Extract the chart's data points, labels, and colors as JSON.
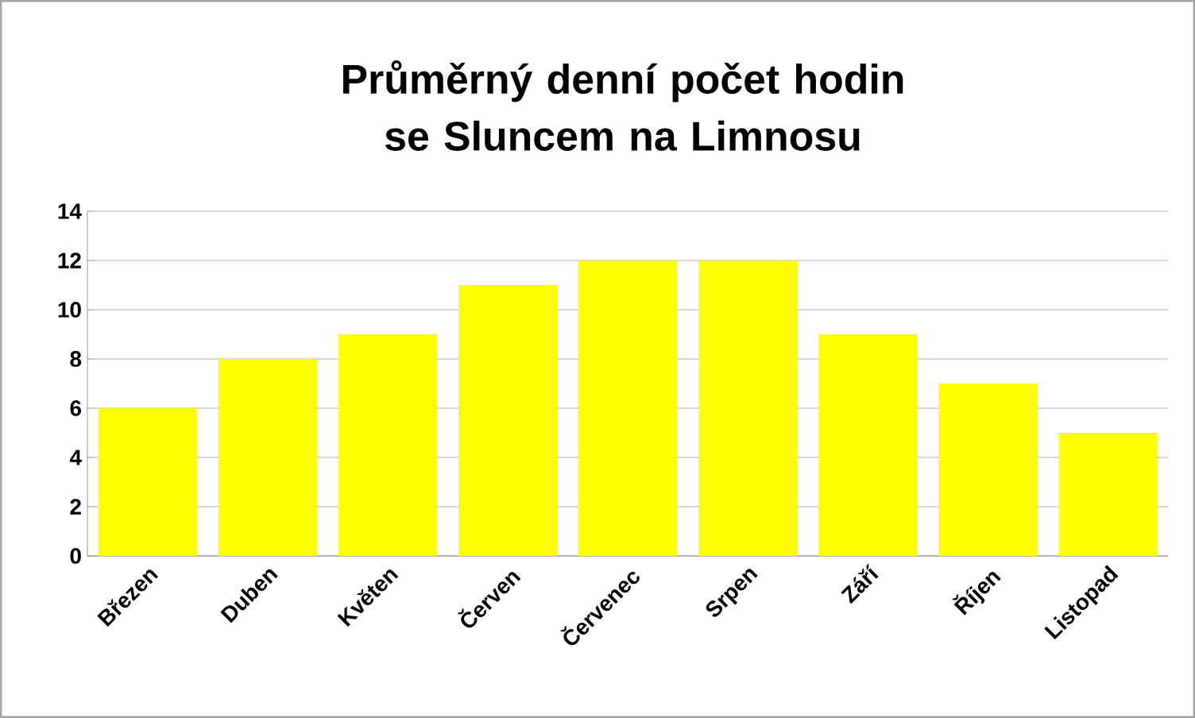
{
  "chart_data": {
    "type": "bar",
    "title": "Průměrný denní počet hodin se Sluncem na Limnosu",
    "categories": [
      "Březen",
      "Duben",
      "Květen",
      "Červen",
      "Červenec",
      "Srpen",
      "Září",
      "Říjen",
      "Listopad"
    ],
    "values": [
      6,
      8,
      9,
      11,
      12,
      12,
      9,
      7,
      5
    ],
    "color": "#ffff00",
    "ylim": [
      0,
      14
    ],
    "yticks": [
      0,
      2,
      4,
      6,
      8,
      10,
      12,
      14
    ],
    "grid": "y"
  }
}
